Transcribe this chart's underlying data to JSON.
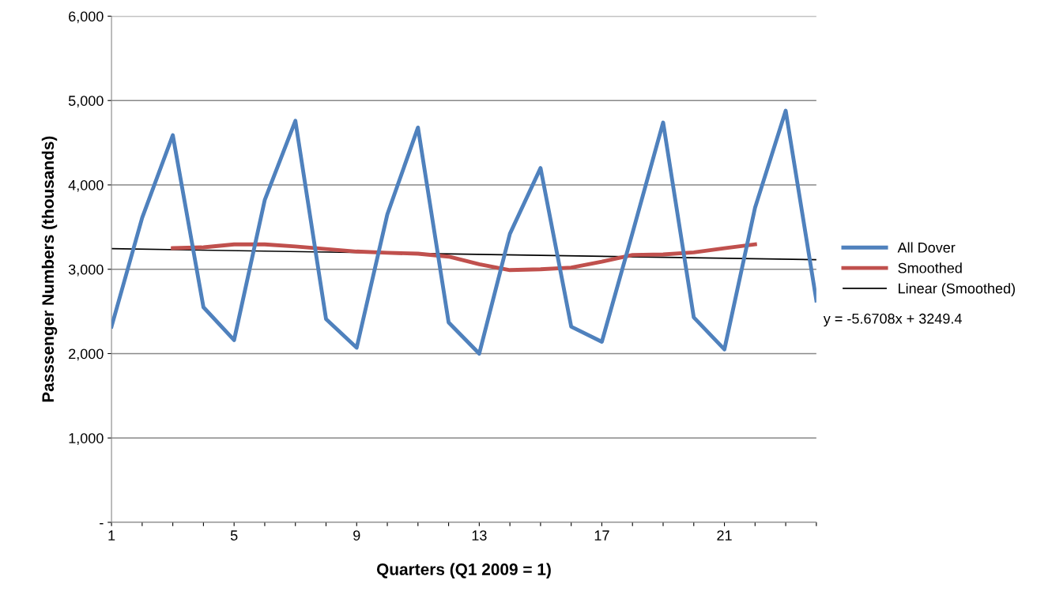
{
  "chart_data": {
    "type": "line",
    "xlabel": "Quarters (Q1 2009 = 1)",
    "ylabel": "Passsenger Numbers (thousands)",
    "x": [
      1,
      2,
      3,
      4,
      5,
      6,
      7,
      8,
      9,
      10,
      11,
      12,
      13,
      14,
      15,
      16,
      17,
      18,
      19,
      20,
      21,
      22,
      23,
      24
    ],
    "series": [
      {
        "name": "All Dover",
        "color": "#4f81bd",
        "values": [
          2320,
          3610,
          4590,
          2550,
          2160,
          3820,
          4760,
          2410,
          2070,
          3650,
          4680,
          2370,
          2000,
          3420,
          4200,
          2320,
          2140,
          3430,
          4740,
          2430,
          2050,
          3730,
          4880,
          2630
        ]
      },
      {
        "name": "Smoothed",
        "color": "#c0504d",
        "values": [
          null,
          null,
          3250,
          3260,
          3295,
          3295,
          3270,
          3240,
          3210,
          3195,
          3185,
          3150,
          3060,
          2990,
          3000,
          3020,
          3090,
          3170,
          3175,
          3200,
          3250,
          3295,
          null,
          null
        ]
      },
      {
        "name": "Linear (Smoothed)",
        "color": "#000000",
        "x": [
          1,
          24
        ],
        "values": [
          3243.7,
          3113.3
        ]
      }
    ],
    "annotations": [
      "y = -5.6708x + 3249.4"
    ],
    "xlim": [
      1,
      24
    ],
    "xticks": [
      1,
      {
        "value": 2,
        "label": null
      },
      {
        "value": 3,
        "label": null
      },
      {
        "value": 4,
        "label": null
      },
      5,
      {
        "value": 6,
        "label": null
      },
      {
        "value": 7,
        "label": null
      },
      {
        "value": 8,
        "label": null
      },
      9,
      {
        "value": 10,
        "label": null
      },
      {
        "value": 11,
        "label": null
      },
      {
        "value": 12,
        "label": null
      },
      13,
      {
        "value": 14,
        "label": null
      },
      {
        "value": 15,
        "label": null
      },
      {
        "value": 16,
        "label": null
      },
      17,
      {
        "value": 18,
        "label": null
      },
      {
        "value": 19,
        "label": null
      },
      {
        "value": 20,
        "label": null
      },
      21,
      {
        "value": 22,
        "label": null
      },
      {
        "value": 23,
        "label": null
      },
      {
        "value": 24,
        "label": null
      }
    ],
    "ylim": [
      0,
      6000
    ],
    "yticks": [
      {
        "value": 0,
        "label": "-"
      },
      {
        "value": 1000,
        "label": "1,000"
      },
      {
        "value": 2000,
        "label": "2,000"
      },
      {
        "value": 3000,
        "label": "3,000"
      },
      {
        "value": 4000,
        "label": "4,000"
      },
      {
        "value": 5000,
        "label": "5,000"
      },
      {
        "value": 6000,
        "label": "6,000"
      }
    ],
    "grid": "y",
    "legend": "right",
    "marker": "none",
    "line_style": "solid"
  }
}
